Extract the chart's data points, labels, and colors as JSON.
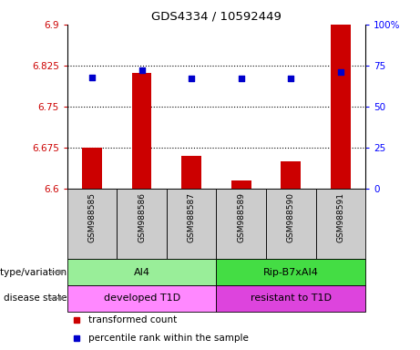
{
  "title": "GDS4334 / 10592449",
  "samples": [
    "GSM988585",
    "GSM988586",
    "GSM988587",
    "GSM988589",
    "GSM988590",
    "GSM988591"
  ],
  "transformed_count": [
    6.675,
    6.812,
    6.66,
    6.615,
    6.65,
    6.9
  ],
  "percentile_rank": [
    68,
    72,
    67,
    67,
    67,
    71
  ],
  "ylim_left": [
    6.6,
    6.9
  ],
  "ylim_right": [
    0,
    100
  ],
  "yticks_left": [
    6.6,
    6.675,
    6.75,
    6.825,
    6.9
  ],
  "yticks_right": [
    0,
    25,
    50,
    75,
    100
  ],
  "ytick_labels_left": [
    "6.6",
    "6.675",
    "6.75",
    "6.825",
    "6.9"
  ],
  "ytick_labels_right": [
    "0",
    "25",
    "50",
    "75",
    "100%"
  ],
  "hlines": [
    6.675,
    6.75,
    6.825
  ],
  "bar_color": "#cc0000",
  "dot_color": "#0000cc",
  "sample_bg": "#cccccc",
  "genotype_groups": [
    {
      "label": "AI4",
      "start": 0,
      "end": 3,
      "color": "#99ee99"
    },
    {
      "label": "Rip-B7xAI4",
      "start": 3,
      "end": 6,
      "color": "#44dd44"
    }
  ],
  "disease_groups": [
    {
      "label": "developed T1D",
      "start": 0,
      "end": 3,
      "color": "#ff88ff"
    },
    {
      "label": "resistant to T1D",
      "start": 3,
      "end": 6,
      "color": "#dd44dd"
    }
  ],
  "genotype_row_label": "genotype/variation",
  "disease_row_label": "disease state",
  "legend_items": [
    {
      "label": "transformed count",
      "color": "#cc0000"
    },
    {
      "label": "percentile rank within the sample",
      "color": "#0000cc"
    }
  ]
}
